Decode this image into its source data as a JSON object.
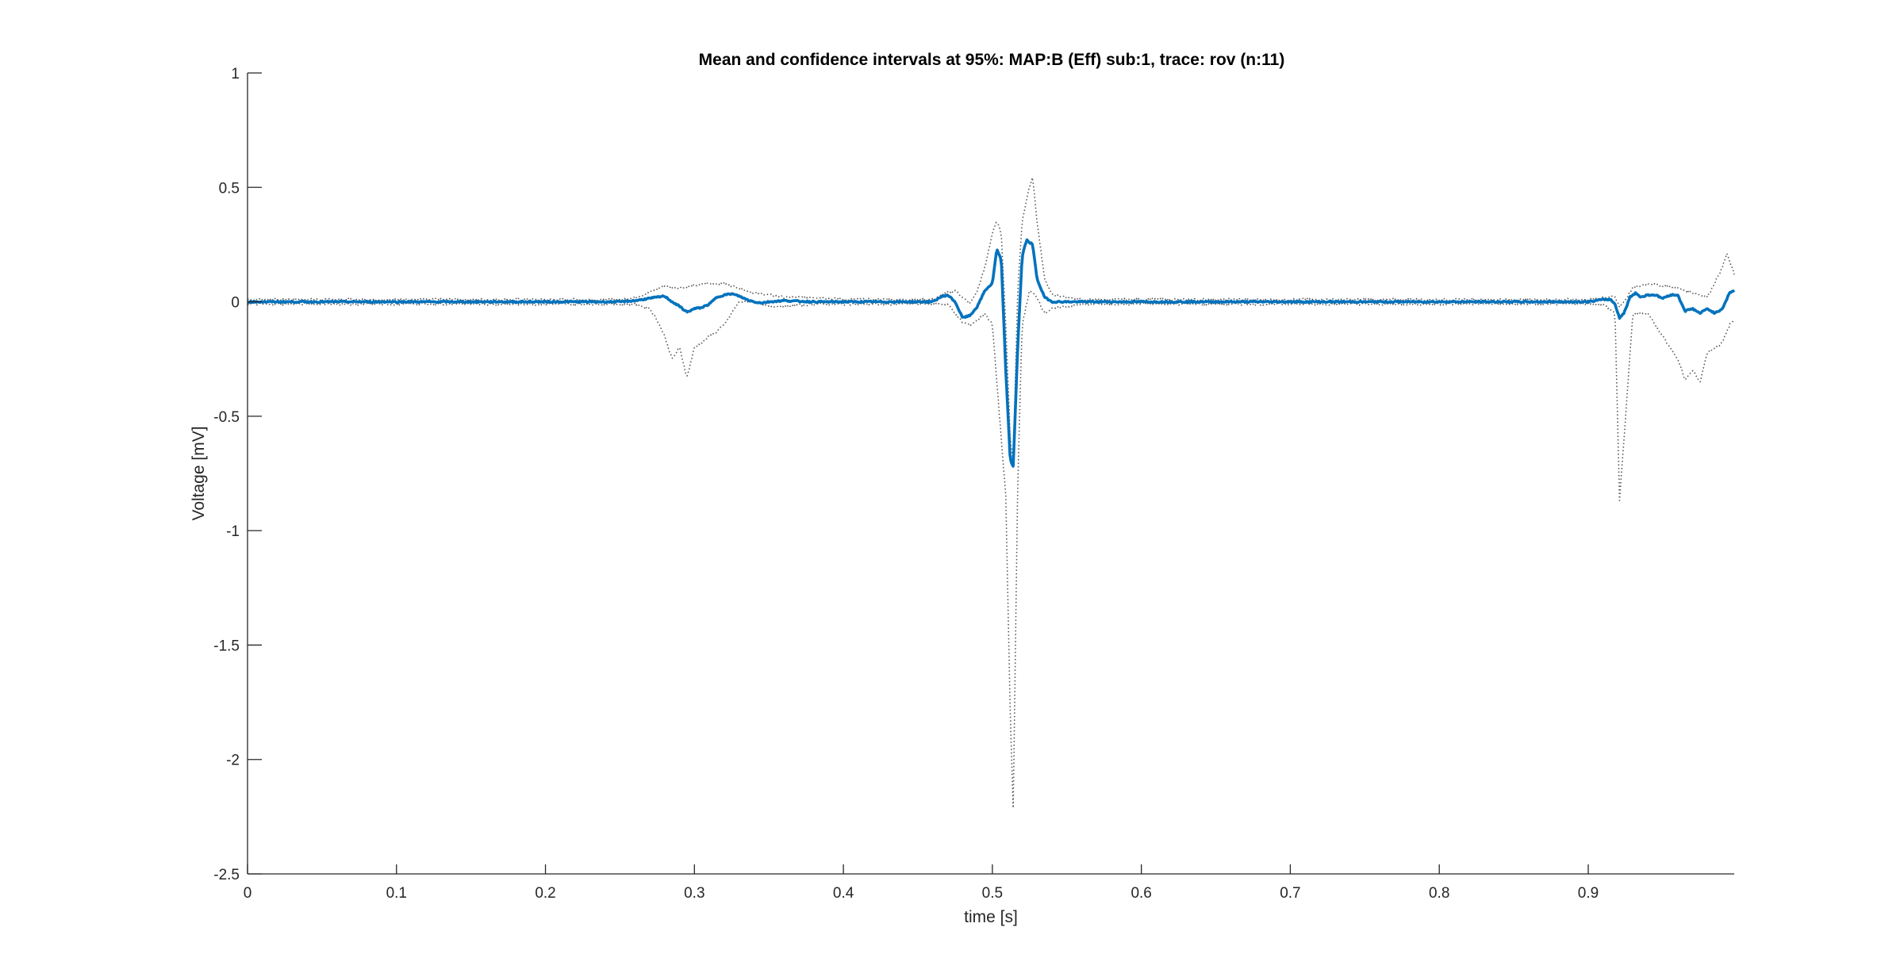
{
  "chart_data": {
    "type": "line",
    "title": "Mean and confidence intervals at 95%: MAP:B (Eff) sub:1, trace: rov (n:11)",
    "xlabel": "time [s]",
    "ylabel": "Voltage [mV]",
    "xlim": [
      0,
      0.998
    ],
    "ylim": [
      -2.5,
      1
    ],
    "xticks": [
      0,
      0.1,
      0.2,
      0.3,
      0.4,
      0.5,
      0.6,
      0.7,
      0.8,
      0.9
    ],
    "xtick_labels": [
      "0",
      "0.1",
      "0.2",
      "0.3",
      "0.4",
      "0.5",
      "0.6",
      "0.7",
      "0.8",
      "0.9"
    ],
    "yticks": [
      -2.5,
      -2,
      -1.5,
      -1,
      -0.5,
      0,
      0.5,
      1
    ],
    "ytick_labels": [
      "-2.5",
      "-2",
      "-1.5",
      "-1",
      "-0.5",
      "0",
      "0.5",
      "1"
    ],
    "grid": false,
    "colors": {
      "mean": "#0072BD",
      "ci": "#555555",
      "axis": "#262626"
    },
    "series": [
      {
        "role": "mean",
        "style": "solid",
        "x": [
          0,
          0.05,
          0.1,
          0.15,
          0.2,
          0.25,
          0.26,
          0.27,
          0.275,
          0.28,
          0.285,
          0.29,
          0.295,
          0.3,
          0.305,
          0.31,
          0.315,
          0.32,
          0.325,
          0.33,
          0.335,
          0.34,
          0.345,
          0.35,
          0.36,
          0.38,
          0.4,
          0.42,
          0.44,
          0.46,
          0.465,
          0.47,
          0.475,
          0.48,
          0.485,
          0.49,
          0.495,
          0.5,
          0.503,
          0.506,
          0.509,
          0.512,
          0.514,
          0.517,
          0.52,
          0.523,
          0.527,
          0.53,
          0.535,
          0.54,
          0.545,
          0.55,
          0.56,
          0.6,
          0.7,
          0.8,
          0.9,
          0.91,
          0.915,
          0.918,
          0.921,
          0.924,
          0.928,
          0.932,
          0.935,
          0.94,
          0.945,
          0.95,
          0.955,
          0.96,
          0.965,
          0.97,
          0.975,
          0.98,
          0.985,
          0.99,
          0.995,
          0.998
        ],
        "values": [
          0,
          0,
          0,
          0,
          0,
          0,
          0.005,
          0.015,
          0.02,
          0.025,
          0,
          -0.02,
          -0.045,
          -0.03,
          -0.025,
          -0.01,
          0.02,
          0.03,
          0.035,
          0.025,
          0.01,
          0,
          -0.005,
          0,
          0.005,
          0,
          0,
          0,
          0,
          0,
          0.02,
          0.03,
          0,
          -0.07,
          -0.06,
          -0.02,
          0.05,
          0.08,
          0.23,
          0.18,
          -0.3,
          -0.69,
          -0.72,
          -0.2,
          0.2,
          0.27,
          0.25,
          0.1,
          0.02,
          0,
          0,
          0,
          0,
          0,
          0,
          0,
          0,
          0.01,
          0.01,
          -0.01,
          -0.07,
          -0.05,
          0.02,
          0.04,
          0.02,
          0.03,
          0.03,
          0.015,
          0.03,
          0.03,
          -0.04,
          -0.03,
          -0.05,
          -0.03,
          -0.05,
          -0.03,
          0.04,
          0.05
        ]
      },
      {
        "role": "upper-ci",
        "style": "dotted",
        "x": [
          0,
          0.05,
          0.1,
          0.15,
          0.2,
          0.25,
          0.26,
          0.27,
          0.28,
          0.29,
          0.3,
          0.31,
          0.32,
          0.33,
          0.34,
          0.35,
          0.36,
          0.38,
          0.4,
          0.44,
          0.46,
          0.47,
          0.475,
          0.48,
          0.485,
          0.49,
          0.495,
          0.5,
          0.503,
          0.506,
          0.509,
          0.512,
          0.514,
          0.517,
          0.52,
          0.524,
          0.527,
          0.53,
          0.535,
          0.54,
          0.55,
          0.56,
          0.6,
          0.7,
          0.8,
          0.9,
          0.91,
          0.918,
          0.921,
          0.924,
          0.93,
          0.94,
          0.95,
          0.96,
          0.97,
          0.98,
          0.99,
          0.993,
          0.998
        ],
        "values": [
          0.01,
          0.01,
          0.01,
          0.01,
          0.01,
          0.01,
          0.02,
          0.04,
          0.07,
          0.06,
          0.07,
          0.08,
          0.08,
          0.06,
          0.04,
          0.03,
          0.02,
          0.02,
          0.01,
          0.01,
          0.01,
          0.04,
          0.05,
          0.02,
          -0.01,
          0.05,
          0.15,
          0.3,
          0.35,
          0.3,
          -0.1,
          -0.6,
          -0.7,
          0.05,
          0.35,
          0.48,
          0.55,
          0.35,
          0.1,
          0.03,
          0.02,
          0.01,
          0.01,
          0.01,
          0.01,
          0.01,
          0.02,
          0.02,
          -0.02,
          0,
          0.06,
          0.08,
          0.07,
          0.06,
          0.04,
          0.02,
          0.15,
          0.21,
          0.12
        ]
      },
      {
        "role": "lower-ci",
        "style": "dotted",
        "x": [
          0,
          0.05,
          0.1,
          0.15,
          0.2,
          0.25,
          0.26,
          0.27,
          0.275,
          0.28,
          0.285,
          0.29,
          0.295,
          0.3,
          0.305,
          0.31,
          0.315,
          0.32,
          0.33,
          0.34,
          0.35,
          0.36,
          0.38,
          0.4,
          0.44,
          0.46,
          0.47,
          0.475,
          0.48,
          0.485,
          0.49,
          0.495,
          0.5,
          0.503,
          0.506,
          0.509,
          0.512,
          0.514,
          0.517,
          0.52,
          0.525,
          0.53,
          0.535,
          0.54,
          0.55,
          0.56,
          0.6,
          0.7,
          0.8,
          0.9,
          0.91,
          0.918,
          0.921,
          0.924,
          0.93,
          0.94,
          0.95,
          0.955,
          0.96,
          0.965,
          0.97,
          0.975,
          0.98,
          0.985,
          0.99,
          0.995,
          0.998
        ],
        "values": [
          -0.01,
          -0.01,
          -0.01,
          -0.01,
          -0.01,
          -0.01,
          -0.01,
          -0.03,
          -0.08,
          -0.15,
          -0.25,
          -0.2,
          -0.33,
          -0.2,
          -0.18,
          -0.15,
          -0.13,
          -0.1,
          0,
          0,
          -0.02,
          -0.02,
          -0.01,
          -0.01,
          -0.01,
          -0.01,
          -0.01,
          -0.05,
          -0.09,
          -0.1,
          -0.08,
          -0.05,
          -0.1,
          -0.35,
          -0.6,
          -0.85,
          -1.8,
          -2.22,
          -0.8,
          -0.1,
          0.05,
          0.02,
          -0.05,
          -0.03,
          -0.02,
          -0.01,
          -0.01,
          -0.01,
          -0.01,
          -0.01,
          -0.01,
          -0.05,
          -0.87,
          -0.6,
          -0.05,
          -0.05,
          -0.15,
          -0.2,
          -0.25,
          -0.34,
          -0.3,
          -0.35,
          -0.22,
          -0.2,
          -0.18,
          -0.1,
          -0.08
        ]
      }
    ]
  }
}
